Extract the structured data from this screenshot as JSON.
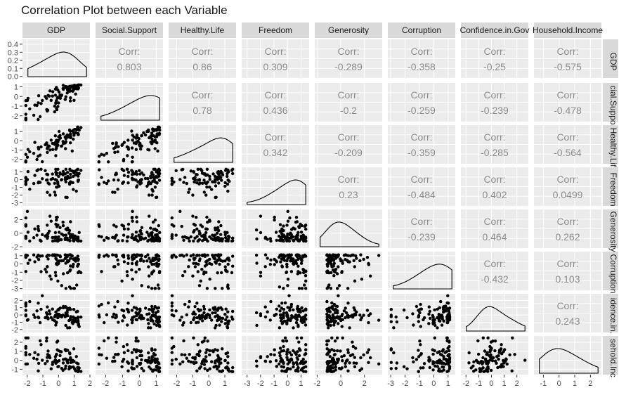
{
  "chart_data": {
    "type": "scatter",
    "title": "Correlation Plot between each Variable",
    "variables": [
      "GDP",
      "Social.Support",
      "Healthy.Life",
      "Freedom",
      "Generosity",
      "Corruption",
      "Confidence.in.Gov",
      "Household.Income"
    ],
    "row_strip_labels": [
      "GDP",
      "cial.Suppo",
      "Healthy.Lif",
      "Freedom",
      "Generosity",
      "Corruption",
      "idence.in.",
      "sehold.Inc"
    ],
    "corr_label": "Corr:",
    "correlations": [
      {
        "row": "GDP",
        "col": "Social.Support",
        "value": "0.803"
      },
      {
        "row": "GDP",
        "col": "Healthy.Life",
        "value": "0.86"
      },
      {
        "row": "GDP",
        "col": "Freedom",
        "value": "0.309"
      },
      {
        "row": "GDP",
        "col": "Generosity",
        "value": "-0.289"
      },
      {
        "row": "GDP",
        "col": "Corruption",
        "value": "-0.358"
      },
      {
        "row": "GDP",
        "col": "Confidence.in.Gov",
        "value": "-0.25"
      },
      {
        "row": "GDP",
        "col": "Household.Income",
        "value": "-0.575"
      },
      {
        "row": "Social.Support",
        "col": "Healthy.Life",
        "value": "0.78"
      },
      {
        "row": "Social.Support",
        "col": "Freedom",
        "value": "0.436"
      },
      {
        "row": "Social.Support",
        "col": "Generosity",
        "value": "-0.2"
      },
      {
        "row": "Social.Support",
        "col": "Corruption",
        "value": "-0.259"
      },
      {
        "row": "Social.Support",
        "col": "Confidence.in.Gov",
        "value": "-0.239"
      },
      {
        "row": "Social.Support",
        "col": "Household.Income",
        "value": "-0.478"
      },
      {
        "row": "Healthy.Life",
        "col": "Freedom",
        "value": "0.342"
      },
      {
        "row": "Healthy.Life",
        "col": "Generosity",
        "value": "-0.209"
      },
      {
        "row": "Healthy.Life",
        "col": "Corruption",
        "value": "-0.359"
      },
      {
        "row": "Healthy.Life",
        "col": "Confidence.in.Gov",
        "value": "-0.285"
      },
      {
        "row": "Healthy.Life",
        "col": "Household.Income",
        "value": "-0.564"
      },
      {
        "row": "Freedom",
        "col": "Generosity",
        "value": "0.23"
      },
      {
        "row": "Freedom",
        "col": "Corruption",
        "value": "-0.484"
      },
      {
        "row": "Freedom",
        "col": "Confidence.in.Gov",
        "value": "0.402"
      },
      {
        "row": "Freedom",
        "col": "Household.Income",
        "value": "0.0499"
      },
      {
        "row": "Generosity",
        "col": "Corruption",
        "value": "-0.239"
      },
      {
        "row": "Generosity",
        "col": "Confidence.in.Gov",
        "value": "0.464"
      },
      {
        "row": "Generosity",
        "col": "Household.Income",
        "value": "0.262"
      },
      {
        "row": "Corruption",
        "col": "Confidence.in.Gov",
        "value": "-0.432"
      },
      {
        "row": "Corruption",
        "col": "Household.Income",
        "value": "0.103"
      },
      {
        "row": "Confidence.in.Gov",
        "col": "Household.Income",
        "value": "0.243"
      }
    ],
    "x_axis_ticks": [
      [
        "-2",
        "-1",
        "0",
        "1",
        "2"
      ],
      [
        "-2",
        "-1",
        "0",
        "1"
      ],
      [
        "-2",
        "-1",
        "0",
        "1"
      ],
      [
        "-3",
        "-2",
        "-1",
        "0",
        "1"
      ],
      [
        "-2",
        "0",
        "2"
      ],
      [
        "-3",
        "-2",
        "-1",
        "0",
        "1"
      ],
      [
        "-2",
        "-1",
        "0",
        "1",
        "2"
      ],
      [
        "-1",
        "0",
        "1",
        "2"
      ]
    ],
    "x_ranges": [
      [
        -2.3,
        2.0
      ],
      [
        -2.6,
        1.4
      ],
      [
        -2.5,
        1.7
      ],
      [
        -3.4,
        1.6
      ],
      [
        -2.2,
        3.5
      ],
      [
        -3.2,
        1.5
      ],
      [
        -2.4,
        2.9
      ],
      [
        -1.6,
        2.7
      ]
    ],
    "y_axis_ticks": [
      [
        "0.0",
        "0.1",
        "0.2",
        "0.3",
        "0.4"
      ],
      [
        "-2",
        "-1",
        "0",
        "1"
      ],
      [
        "-2",
        "-1",
        "0",
        "1"
      ],
      [
        "-3",
        "-2",
        "-1",
        "0",
        "1"
      ],
      [
        "-2",
        "0",
        "2"
      ],
      [
        "-3",
        "-2",
        "-1",
        "0",
        "1"
      ],
      [
        "-2",
        "-1",
        "0",
        "1",
        "2"
      ],
      [
        "-1",
        "0",
        "1",
        "2"
      ]
    ],
    "y_ranges": [
      [
        -0.02,
        0.46
      ],
      [
        -2.6,
        1.4
      ],
      [
        -2.5,
        1.7
      ],
      [
        -3.4,
        1.6
      ],
      [
        -2.2,
        3.5
      ],
      [
        -3.2,
        1.5
      ],
      [
        -2.4,
        2.9
      ],
      [
        -1.6,
        2.7
      ]
    ],
    "density_peaks": [
      0.6,
      1.0,
      1.0,
      0.9,
      -0.5,
      0.75,
      -0.4,
      -0.4
    ],
    "skew": [
      -0.55,
      -0.75,
      -0.35,
      -0.6,
      0.8,
      -0.9,
      0.3,
      0.7
    ],
    "point_count": 95,
    "grid": true
  }
}
